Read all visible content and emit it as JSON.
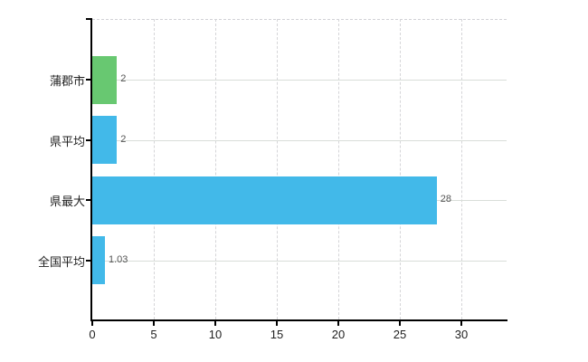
{
  "chart_data": {
    "type": "bar",
    "orientation": "horizontal",
    "title": "",
    "xlabel": "",
    "ylabel": "",
    "categories": [
      "蒲郡市",
      "県平均",
      "県最大",
      "全国平均"
    ],
    "values": [
      2,
      2,
      28,
      1.03
    ],
    "value_labels": [
      "2",
      "2",
      "28",
      "1.03"
    ],
    "bar_colors": [
      "#68c871",
      "#42b9e9",
      "#42b9e9",
      "#42b9e9"
    ],
    "x_ticks": [
      0,
      5,
      10,
      15,
      20,
      25,
      30
    ],
    "x_tick_labels": [
      "0",
      "5",
      "10",
      "15",
      "20",
      "25",
      "30"
    ],
    "xlim": [
      0,
      33.7
    ],
    "grid": true,
    "legend": "none"
  },
  "colors": {
    "bar_green": "#68c871",
    "bar_blue": "#42b9e9",
    "axis": "#000000",
    "gridline_horizontal": "#d9ddd9",
    "gridline_vertical": "#d5d5d8",
    "category_label": "#222222",
    "value_label": "#555555",
    "background": "#ffffff"
  }
}
